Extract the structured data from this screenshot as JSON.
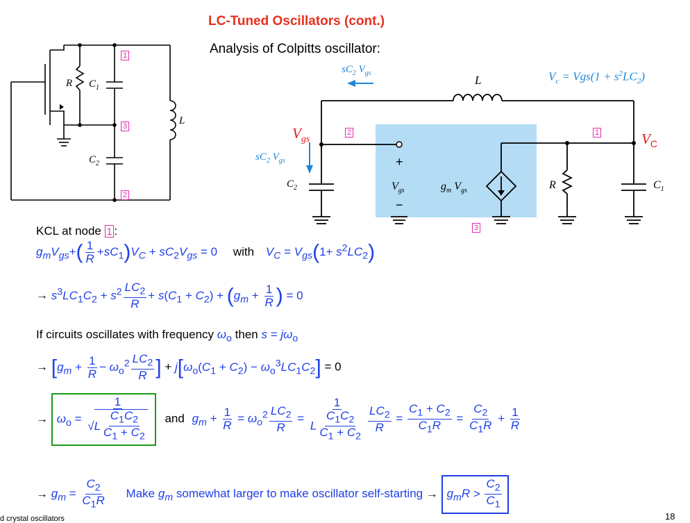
{
  "slide": {
    "title": "LC-Tuned Oscillators (cont.)",
    "subtitle": "Analysis of Colpitts oscillator:",
    "footer_left": "d crystal oscillators",
    "page_number": "18"
  },
  "left_circuit": {
    "labels": {
      "R": "R",
      "C1": "C",
      "C1_sub": "1",
      "C2": "C",
      "C2_sub": "2",
      "L": "L"
    },
    "nodes": [
      "1",
      "3",
      "2"
    ]
  },
  "right_circuit": {
    "arrow_label_top": "sC₂ Vₛgs",
    "arrow_label_top_text": "sC",
    "L_label": "L",
    "vc_equation": "Vᶜ = Vgs(1 + s²LC₂)",
    "vgs_red": "V",
    "vgs_red_sub": "gs",
    "vc_red": "V",
    "vc_red_sub": "C",
    "node_2": "2",
    "node_1": "1",
    "node_3": "3",
    "current_label": "sC₂ Vgs",
    "C2": "C₂",
    "plus": "+",
    "minus": "−",
    "vgs_mid": "Vgs",
    "gm_vgs": "gₘ Vgs",
    "R": "R",
    "C1": "C₁"
  },
  "equations": {
    "kcl_text": "KCL at node",
    "kcl_node": "1",
    "kcl_colon": ":",
    "with_text": "with",
    "if_text_1": "If circuits oscillates with frequency",
    "if_text_2": "then",
    "and_text": "and",
    "make_text_1": "Make",
    "make_text_2": "somewhat larger to make oscillator self-starting"
  },
  "colors": {
    "title": "#e8301e",
    "blue": "#1f3fe6",
    "teal": "#1f86d6",
    "red": "#e01818",
    "node_box": "#e62ab0",
    "green_box": "#1a9a1a",
    "highlight": "#b4dcf4"
  }
}
